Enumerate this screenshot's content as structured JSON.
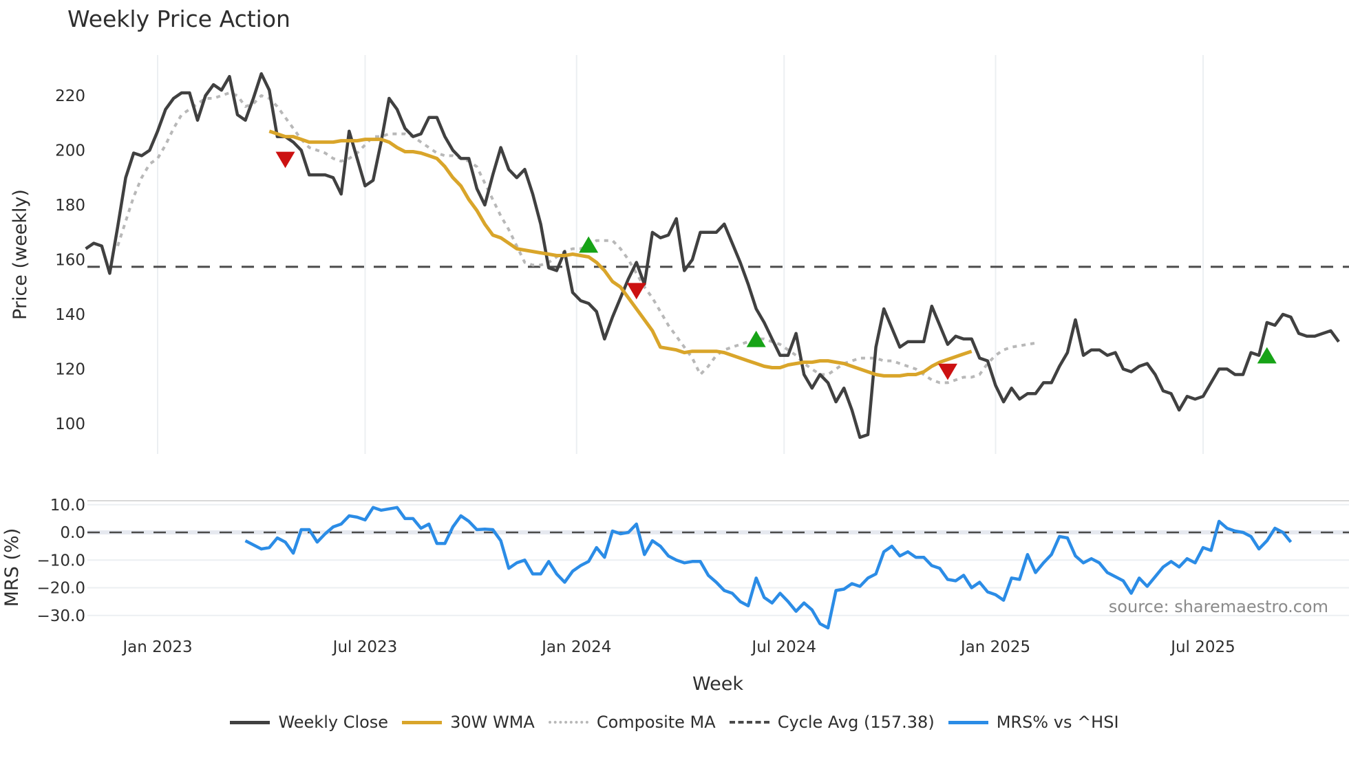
{
  "title": "Weekly Price Action",
  "colors": {
    "close": "#404040",
    "wma": "#d9a52a",
    "composite": "#b8b8b8",
    "cycle": "#4a4a4a",
    "mrs": "#2b8ce6",
    "buy": "#17a317",
    "sell": "#cc1111",
    "grid": "#eceff2"
  },
  "legend": [
    {
      "key": "close",
      "label": "Weekly Close",
      "style": "solid"
    },
    {
      "key": "wma",
      "label": "30W WMA",
      "style": "solid"
    },
    {
      "key": "composite",
      "label": "Composite MA",
      "style": "dotted"
    },
    {
      "key": "cycle",
      "label": "Cycle Avg (157.38)",
      "style": "dashed"
    },
    {
      "key": "mrs",
      "label": "MRS% vs ^HSI",
      "style": "solid"
    }
  ],
  "source": "source: sharemaestro.com",
  "chart_data": [
    {
      "type": "line",
      "title": "Weekly Price Action",
      "xlabel": "Week",
      "ylabel": "Price (weekly)",
      "ylim": [
        88,
        232
      ],
      "yticks": [
        100,
        120,
        140,
        160,
        180,
        200,
        220
      ],
      "xticks": [
        "Jan 2023",
        "Jul 2023",
        "Jan 2024",
        "Jul 2024",
        "Jan 2025",
        "Jul 2025"
      ],
      "xtick_week_index": [
        9,
        35,
        61.5,
        87.5,
        114,
        140
      ],
      "grid": {
        "x": true,
        "y": false
      },
      "cycle_avg": 157.38,
      "series": [
        {
          "name": "Weekly Close",
          "start_week": 0,
          "values": [
            164,
            166,
            165,
            155,
            172,
            190,
            199,
            198,
            200,
            207,
            215,
            219,
            221,
            221,
            211,
            220,
            224,
            222,
            227,
            213,
            211,
            219,
            228,
            222,
            205,
            205,
            203,
            200,
            191,
            191,
            191,
            190,
            184,
            207,
            197,
            187,
            189,
            203,
            219,
            215,
            208,
            205,
            206,
            212,
            212,
            205,
            200,
            197,
            197,
            186,
            180,
            191,
            201,
            193,
            190,
            193,
            184,
            173,
            157,
            156,
            163,
            148,
            145,
            144,
            141,
            131,
            139,
            146,
            153,
            159,
            151,
            170,
            168,
            169,
            175,
            156,
            160,
            170,
            170,
            170,
            173,
            166,
            159,
            151,
            142,
            137,
            131,
            125,
            125,
            133,
            118,
            113,
            118,
            115,
            108,
            113,
            105,
            95,
            96,
            128,
            142,
            135,
            128,
            130,
            130,
            130,
            143,
            136,
            129,
            132,
            131,
            131,
            124,
            123,
            114,
            108,
            113,
            109,
            111,
            111,
            115,
            115,
            121,
            126,
            138,
            125,
            127,
            127,
            125,
            126,
            120,
            119,
            121,
            122,
            118,
            112,
            111,
            105,
            110,
            109,
            110,
            115,
            120,
            120,
            118,
            118,
            126,
            125,
            137,
            136,
            140,
            139,
            133,
            132,
            132,
            133,
            134,
            130
          ]
        },
        {
          "name": "30W WMA",
          "start_week": 23,
          "values": [
            207,
            206,
            205,
            205,
            204,
            203,
            203,
            203,
            203,
            203.5,
            203.5,
            203.5,
            204,
            204,
            204,
            203,
            201,
            199.5,
            199.5,
            199,
            198,
            197,
            194,
            190,
            187,
            182,
            178,
            173,
            169,
            168,
            166,
            164,
            163.5,
            163,
            162.5,
            162,
            161.5,
            161.5,
            162,
            161.5,
            161,
            159,
            156,
            152,
            150,
            146,
            142,
            138,
            134,
            128,
            127.5,
            127,
            126,
            126.5,
            126.5,
            126.5,
            126.5,
            126,
            125,
            124,
            123,
            122,
            121,
            120.5,
            120.5,
            121.5,
            122,
            122.5,
            122.5,
            123,
            123,
            122.5,
            122,
            121,
            120,
            119,
            118,
            117.5,
            117.5,
            117.5,
            118,
            118,
            119,
            121,
            122.5,
            123.5,
            124.5,
            125.5,
            126.5
          ]
        },
        {
          "name": "Composite MA",
          "start_week": 4,
          "values": [
            165,
            174,
            183,
            190,
            195,
            197,
            202,
            208,
            213,
            215,
            217,
            219,
            219,
            220,
            221,
            220,
            216,
            217,
            220,
            219,
            216,
            212,
            208,
            204,
            201,
            200,
            199,
            197,
            196,
            197,
            199,
            202,
            205,
            205,
            206,
            206,
            206,
            205,
            203,
            201,
            199,
            198,
            198,
            197,
            196,
            194,
            188,
            182,
            176,
            171,
            165,
            159,
            158,
            158,
            159,
            161,
            163,
            164,
            164,
            165,
            167,
            167,
            167,
            164,
            160,
            155,
            150,
            146,
            141,
            136,
            132,
            128,
            124,
            118,
            121,
            125,
            127,
            128,
            129,
            130,
            131,
            131,
            130,
            129,
            127,
            125,
            122,
            120,
            118,
            118,
            120,
            122,
            123,
            124,
            124,
            124,
            123,
            123,
            122,
            121,
            120,
            118,
            116,
            115,
            115,
            116,
            117,
            117,
            118,
            122,
            125,
            127,
            128,
            128.5,
            129,
            129.5
          ]
        },
        {
          "name": "Cycle Avg",
          "value": 157.38
        }
      ],
      "markers": [
        {
          "type": "sell",
          "week": 25,
          "value": 197
        },
        {
          "type": "buy",
          "week": 63,
          "value": 165
        },
        {
          "type": "sell",
          "week": 69,
          "value": 149
        },
        {
          "type": "buy",
          "week": 84,
          "value": 130.5
        },
        {
          "type": "sell",
          "week": 108,
          "value": 119.5
        },
        {
          "type": "buy",
          "week": 148,
          "value": 124.5
        }
      ]
    },
    {
      "type": "line",
      "title": "",
      "xlabel": "Week",
      "ylabel": "MRS (%)",
      "ylim": [
        -36,
        13
      ],
      "yticks": [
        10.0,
        0.0,
        -10.0,
        -20.0,
        -30.0
      ],
      "ytick_labels": [
        "10.0",
        "0.0",
        "−10.0",
        "−20.0",
        "−30.0"
      ],
      "zero_line": 0.0,
      "series": [
        {
          "name": "MRS% vs ^HSI",
          "start_week": 20,
          "values": [
            -3,
            -4.5,
            -6,
            -5.5,
            -2,
            -3.5,
            -7.5,
            1,
            1,
            -3.5,
            -0.5,
            2,
            3,
            6,
            5.5,
            4.5,
            9,
            8,
            8.5,
            9,
            5,
            5,
            1.5,
            3,
            -4,
            -4,
            2,
            6,
            4,
            1,
            1.2,
            1,
            -3,
            -13,
            -11,
            -10,
            -15,
            -15,
            -10.5,
            -15,
            -18,
            -14,
            -12,
            -10.5,
            -5.5,
            -9,
            0.5,
            -0.5,
            0,
            3,
            -8,
            -3,
            -5,
            -8.5,
            -10,
            -11,
            -10.5,
            -10.5,
            -15.5,
            -18,
            -21,
            -22,
            -25,
            -26.5,
            -16.5,
            -23.5,
            -25.5,
            -22,
            -25,
            -28.5,
            -25.5,
            -28,
            -33,
            -34.5,
            -21,
            -20.5,
            -18.5,
            -19.5,
            -16.5,
            -15,
            -7,
            -5,
            -8.5,
            -7,
            -9,
            -9,
            -12,
            -13,
            -17,
            -17.5,
            -15.5,
            -20,
            -18,
            -21.5,
            -22.5,
            -24.5,
            -16.5,
            -17,
            -8,
            -14.5,
            -11,
            -8,
            -1.5,
            -2,
            -8.5,
            -11,
            -9.5,
            -11,
            -14.5,
            -16,
            -17.5,
            -22,
            -16.5,
            -19.5,
            -16,
            -12.5,
            -10.5,
            -12.5,
            -9.5,
            -11,
            -5.5,
            -6.5,
            4,
            1.5,
            0.5,
            0,
            -1.5,
            -6,
            -3,
            1.5,
            0,
            -3.5
          ]
        }
      ]
    }
  ],
  "axes": {
    "price_ylabel": "Price (weekly)",
    "mrs_ylabel": "MRS (%)",
    "xlabel": "Week"
  }
}
